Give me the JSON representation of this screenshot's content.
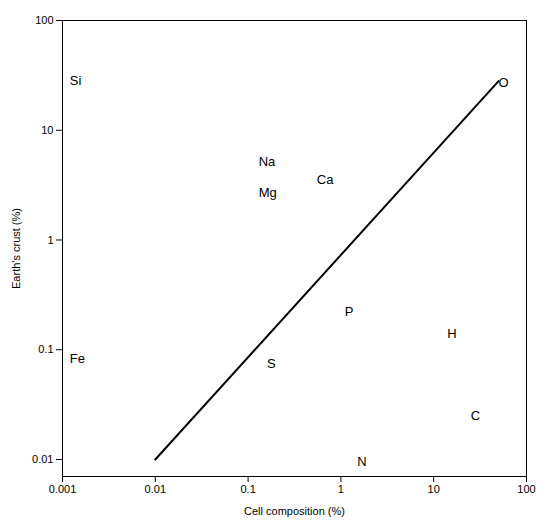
{
  "chart_data": {
    "type": "scatter",
    "xlabel": "Cell composition (%)",
    "ylabel": "Earth's crust (%)",
    "log": true,
    "grid": false,
    "xlim": [
      0.001,
      100
    ],
    "ylim": [
      0.007,
      100
    ],
    "xticks": [
      0.001,
      0.01,
      0.1,
      1,
      10,
      100
    ],
    "yticks": [
      0.01,
      0.1,
      1,
      10,
      100
    ],
    "series": [
      {
        "type": "line",
        "color": "black",
        "x": [
          0.01,
          50
        ],
        "values": [
          0.01,
          28
        ]
      },
      {
        "type": "text",
        "color": "black",
        "labels": [
          "Si",
          "Fe",
          "Na",
          "Mg",
          "Ca",
          "O",
          "P",
          "S",
          "H",
          "C",
          "N"
        ],
        "x": [
          0.0012,
          0.0012,
          0.13,
          0.13,
          0.55,
          50,
          1.1,
          0.16,
          14,
          25,
          1.5
        ],
        "values": [
          28,
          0.083,
          5.2,
          2.7,
          3.5,
          27,
          0.22,
          0.075,
          0.14,
          0.025,
          0.0095
        ]
      }
    ]
  }
}
